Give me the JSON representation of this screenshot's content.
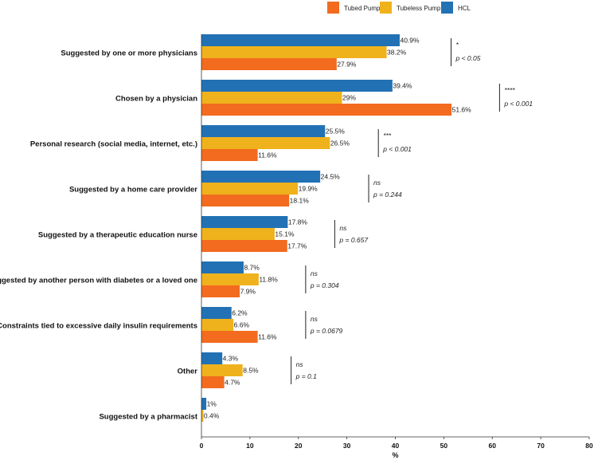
{
  "chart_data": {
    "type": "bar",
    "orientation": "horizontal",
    "title": "",
    "xlabel": "%",
    "ylabel": "",
    "xlim": [
      0,
      80
    ],
    "xticks": [
      0,
      10,
      20,
      30,
      40,
      50,
      60,
      70,
      80
    ],
    "legend_position": "top-right",
    "categories": [
      "Suggested by one or more physicians",
      "Chosen by a physician",
      "Personal research (social media, internet, etc.)",
      "Suggested by a home care provider",
      "Suggested by a therapeutic education nurse",
      "Suggested by another person with diabetes or a loved one",
      "Constraints tied to excessive daily insulin requirements",
      "Other",
      "Suggested by a pharmacist"
    ],
    "series": [
      {
        "name": "HCL",
        "color": "#2271B5",
        "values": [
          40.9,
          39.4,
          25.5,
          24.5,
          17.8,
          8.7,
          6.2,
          4.3,
          1
        ],
        "labels": [
          "40.9%",
          "39.4%",
          "25.5%",
          "24.5%",
          "17.8%",
          "8.7%",
          "6.2%",
          "4.3%",
          "1%"
        ]
      },
      {
        "name": "Tubeless Pump",
        "color": "#EFB21C",
        "values": [
          38.2,
          29,
          26.5,
          19.9,
          15.1,
          11.8,
          6.6,
          8.5,
          0.4
        ],
        "labels": [
          "38.2%",
          "29%",
          "26.5%",
          "19.9%",
          "15.1%",
          "11.8%",
          "6.6%",
          "8.5%",
          "0.4%"
        ]
      },
      {
        "name": "Tubed Pump",
        "color": "#F26B1F",
        "values": [
          27.9,
          51.6,
          11.6,
          18.1,
          17.7,
          7.9,
          11.6,
          4.7,
          null
        ],
        "labels": [
          "27.9%",
          "51.6%",
          "11.6%",
          "18.1%",
          "17.7%",
          "7.9%",
          "11.6%",
          "4.7%",
          null
        ]
      }
    ],
    "legend_order": [
      "Tubed Pump",
      "Tubeless Pump",
      "HCL"
    ],
    "annotations": [
      {
        "category_index": 0,
        "x": 51.5,
        "stars": "*",
        "p": "p < 0.05"
      },
      {
        "category_index": 1,
        "x": 61.5,
        "stars": "****",
        "p": "p < 0.001"
      },
      {
        "category_index": 2,
        "x": 36.5,
        "stars": "***",
        "p": "p < 0.001"
      },
      {
        "category_index": 3,
        "x": 34.5,
        "stars": "ns",
        "p": "p = 0.244"
      },
      {
        "category_index": 4,
        "x": 27.5,
        "stars": "ns",
        "p": "p = 0.657"
      },
      {
        "category_index": 5,
        "x": 21.5,
        "stars": "ns",
        "p": "p = 0.304"
      },
      {
        "category_index": 6,
        "x": 21.5,
        "stars": "ns",
        "p": "p = 0.0679"
      },
      {
        "category_index": 7,
        "x": 18.5,
        "stars": "ns",
        "p": "p = 0.1"
      }
    ]
  }
}
